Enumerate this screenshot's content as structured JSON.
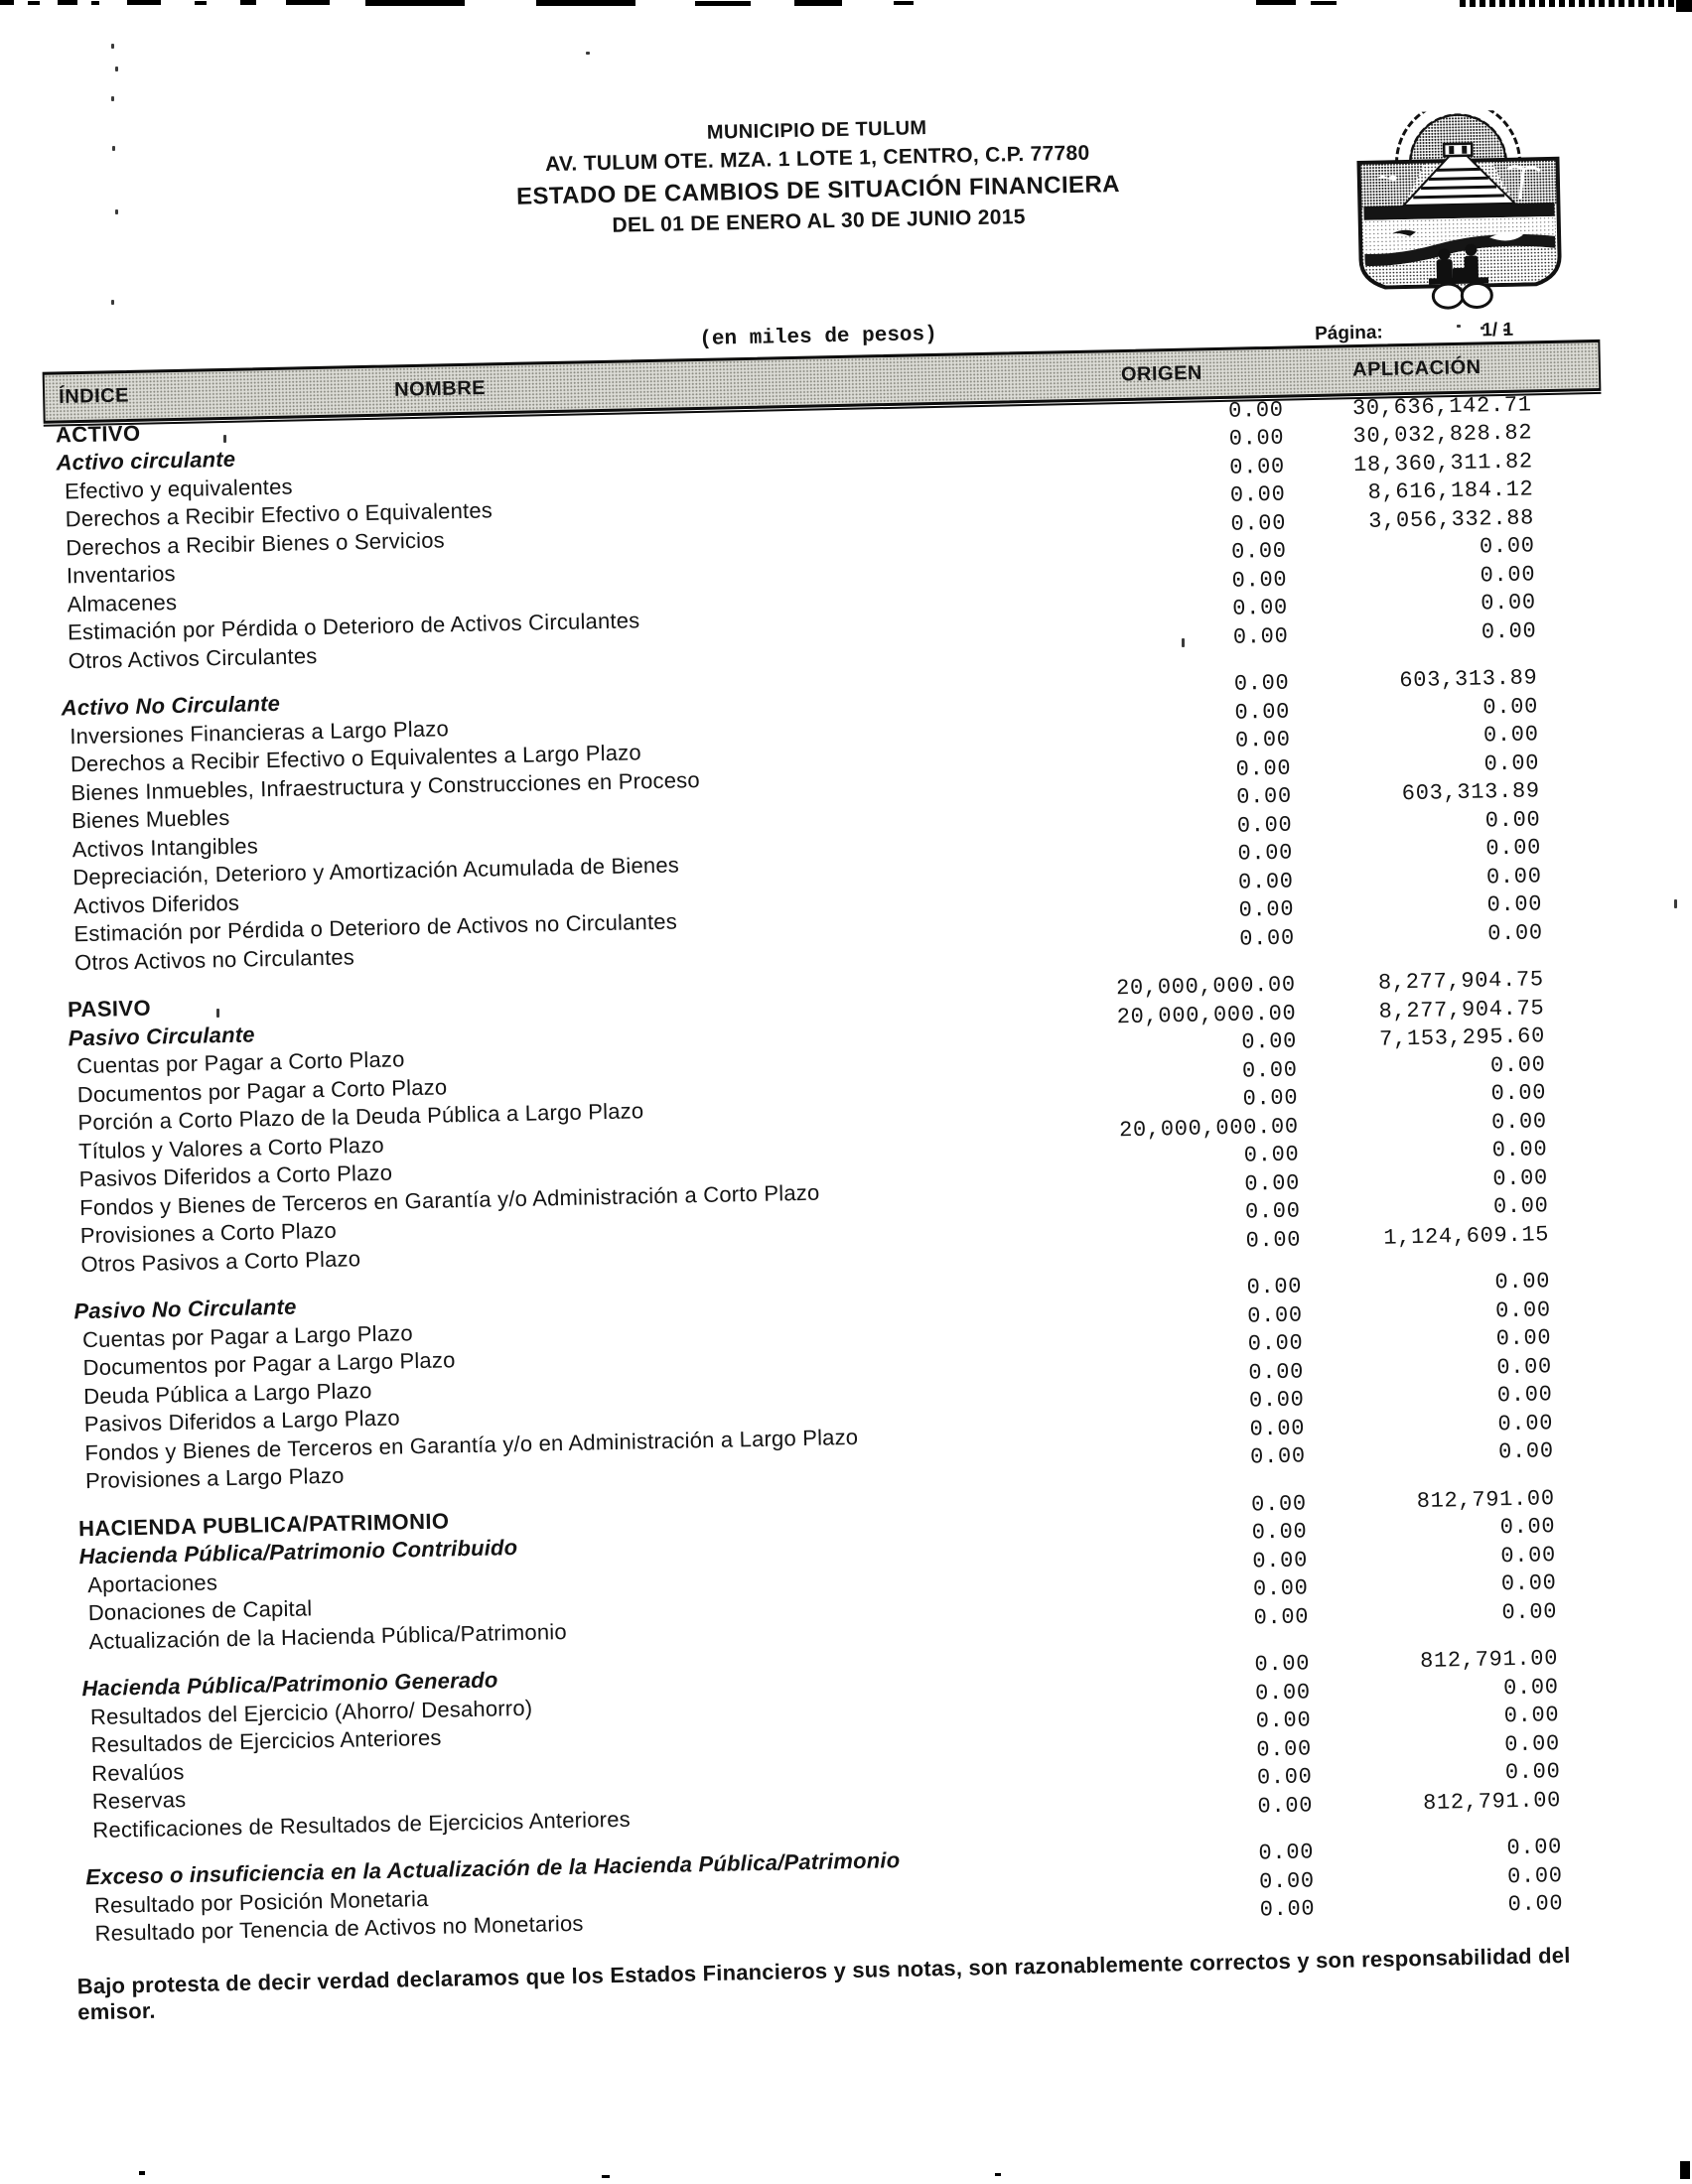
{
  "header": {
    "organization": "MUNICIPIO DE TULUM",
    "address": "AV. TULUM OTE. MZA. 1 LOTE 1, CENTRO, C.P. 77780",
    "title": "ESTADO DE CAMBIOS DE SITUACIÓN FINANCIERA",
    "period": "DEL 01 DE ENERO AL 30 DE JUNIO 2015",
    "unit_note": "(en miles de pesos)",
    "page_label": "Página:",
    "page_value": "1/ 1"
  },
  "logo": {
    "name": "tulum-municipal-shield",
    "description": "shield with dome, pyramid, sea and figures"
  },
  "table": {
    "columns": {
      "indice": "ÍNDICE",
      "nombre": "NOMBRE",
      "origen": "ORIGEN",
      "aplicacion": "APLICACIÓN"
    },
    "sections": [
      {
        "rows": [
          {
            "name": "ACTIVO",
            "style": "header",
            "origen": "0.00",
            "aplicacion": "30,636,142.71"
          },
          {
            "name": "Activo circulante",
            "style": "subheader",
            "origen": "0.00",
            "aplicacion": "30,032,828.82"
          },
          {
            "name": "Efectivo y equivalentes",
            "style": "item",
            "origen": "0.00",
            "aplicacion": "18,360,311.82"
          },
          {
            "name": "Derechos a Recibir Efectivo o Equivalentes",
            "style": "item",
            "origen": "0.00",
            "aplicacion": "8,616,184.12"
          },
          {
            "name": "Derechos a Recibir Bienes o Servicios",
            "style": "item",
            "origen": "0.00",
            "aplicacion": "3,056,332.88"
          },
          {
            "name": "Inventarios",
            "style": "item",
            "origen": "0.00",
            "aplicacion": "0.00"
          },
          {
            "name": "Almacenes",
            "style": "item",
            "origen": "0.00",
            "aplicacion": "0.00"
          },
          {
            "name": "Estimación por Pérdida o Deterioro de Activos Circulantes",
            "style": "item",
            "origen": "0.00",
            "aplicacion": "0.00"
          },
          {
            "name": "Otros Activos Circulantes",
            "style": "item",
            "origen": "0.00",
            "aplicacion": "0.00"
          }
        ]
      },
      {
        "rows": [
          {
            "name": "Activo No Circulante",
            "style": "subheader",
            "origen": "0.00",
            "aplicacion": "603,313.89"
          },
          {
            "name": "Inversiones Financieras a Largo Plazo",
            "style": "item",
            "origen": "0.00",
            "aplicacion": "0.00"
          },
          {
            "name": "Derechos a Recibir Efectivo o Equivalentes a Largo Plazo",
            "style": "item",
            "origen": "0.00",
            "aplicacion": "0.00"
          },
          {
            "name": "Bienes Inmuebles, Infraestructura y Construcciones en Proceso",
            "style": "item",
            "origen": "0.00",
            "aplicacion": "0.00"
          },
          {
            "name": "Bienes Muebles",
            "style": "item",
            "origen": "0.00",
            "aplicacion": "603,313.89"
          },
          {
            "name": "Activos Intangibles",
            "style": "item",
            "origen": "0.00",
            "aplicacion": "0.00"
          },
          {
            "name": "Depreciación, Deterioro y Amortización Acumulada de Bienes",
            "style": "item",
            "origen": "0.00",
            "aplicacion": "0.00"
          },
          {
            "name": "Activos Diferidos",
            "style": "item",
            "origen": "0.00",
            "aplicacion": "0.00"
          },
          {
            "name": "Estimación por Pérdida o Deterioro de Activos no Circulantes",
            "style": "item",
            "origen": "0.00",
            "aplicacion": "0.00"
          },
          {
            "name": "Otros Activos no Circulantes",
            "style": "item",
            "origen": "0.00",
            "aplicacion": "0.00"
          }
        ]
      },
      {
        "rows": [
          {
            "name": "PASIVO",
            "style": "header",
            "origen": "20,000,000.00",
            "aplicacion": "8,277,904.75"
          },
          {
            "name": "Pasivo Circulante",
            "style": "subheader",
            "origen": "20,000,000.00",
            "aplicacion": "8,277,904.75"
          },
          {
            "name": "Cuentas por Pagar a Corto Plazo",
            "style": "item",
            "origen": "0.00",
            "aplicacion": "7,153,295.60"
          },
          {
            "name": "Documentos por Pagar a Corto Plazo",
            "style": "item",
            "origen": "0.00",
            "aplicacion": "0.00"
          },
          {
            "name": "Porción a Corto Plazo de la Deuda Pública a Largo Plazo",
            "style": "item",
            "origen": "0.00",
            "aplicacion": "0.00"
          },
          {
            "name": "Títulos y Valores a Corto Plazo",
            "style": "item",
            "origen": "20,000,000.00",
            "aplicacion": "0.00"
          },
          {
            "name": "Pasivos Diferidos a Corto Plazo",
            "style": "item",
            "origen": "0.00",
            "aplicacion": "0.00"
          },
          {
            "name": "Fondos y Bienes de Terceros en Garantía y/o Administración a Corto Plazo",
            "style": "item",
            "origen": "0.00",
            "aplicacion": "0.00"
          },
          {
            "name": "Provisiones a Corto Plazo",
            "style": "item",
            "origen": "0.00",
            "aplicacion": "0.00"
          },
          {
            "name": "Otros Pasivos a Corto Plazo",
            "style": "item",
            "origen": "0.00",
            "aplicacion": "1,124,609.15"
          }
        ]
      },
      {
        "rows": [
          {
            "name": "Pasivo No Circulante",
            "style": "subheader",
            "origen": "0.00",
            "aplicacion": "0.00"
          },
          {
            "name": "Cuentas por Pagar a Largo Plazo",
            "style": "item",
            "origen": "0.00",
            "aplicacion": "0.00"
          },
          {
            "name": "Documentos por Pagar a Largo Plazo",
            "style": "item",
            "origen": "0.00",
            "aplicacion": "0.00"
          },
          {
            "name": "Deuda Pública a Largo Plazo",
            "style": "item",
            "origen": "0.00",
            "aplicacion": "0.00"
          },
          {
            "name": "Pasivos Diferidos a Largo Plazo",
            "style": "item",
            "origen": "0.00",
            "aplicacion": "0.00"
          },
          {
            "name": "Fondos y Bienes de Terceros en Garantía y/o en Administración a Largo Plazo",
            "style": "item",
            "origen": "0.00",
            "aplicacion": "0.00"
          },
          {
            "name": "Provisiones a Largo Plazo",
            "style": "item",
            "origen": "0.00",
            "aplicacion": "0.00"
          }
        ]
      },
      {
        "rows": [
          {
            "name": "HACIENDA PUBLICA/PATRIMONIO",
            "style": "header",
            "origen": "0.00",
            "aplicacion": "812,791.00"
          },
          {
            "name": "Hacienda Pública/Patrimonio Contribuido",
            "style": "subheader",
            "origen": "0.00",
            "aplicacion": "0.00"
          },
          {
            "name": "Aportaciones",
            "style": "item",
            "origen": "0.00",
            "aplicacion": "0.00"
          },
          {
            "name": "Donaciones de Capital",
            "style": "item",
            "origen": "0.00",
            "aplicacion": "0.00"
          },
          {
            "name": "Actualización de la Hacienda Pública/Patrimonio",
            "style": "item",
            "origen": "0.00",
            "aplicacion": "0.00"
          }
        ]
      },
      {
        "rows": [
          {
            "name": "Hacienda Pública/Patrimonio Generado",
            "style": "subheader",
            "origen": "0.00",
            "aplicacion": "812,791.00"
          },
          {
            "name": "Resultados del Ejercicio (Ahorro/ Desahorro)",
            "style": "item",
            "origen": "0.00",
            "aplicacion": "0.00"
          },
          {
            "name": "Resultados de Ejercicios Anteriores",
            "style": "item",
            "origen": "0.00",
            "aplicacion": "0.00"
          },
          {
            "name": "Revalúos",
            "style": "item",
            "origen": "0.00",
            "aplicacion": "0.00"
          },
          {
            "name": "Reservas",
            "style": "item",
            "origen": "0.00",
            "aplicacion": "0.00"
          },
          {
            "name": "Rectificaciones de Resultados de Ejercicios Anteriores",
            "style": "item",
            "origen": "0.00",
            "aplicacion": "812,791.00"
          }
        ]
      },
      {
        "rows": [
          {
            "name": "Exceso o insuficiencia en la Actualización de la Hacienda Pública/Patrimonio",
            "style": "subheader",
            "origen": "0.00",
            "aplicacion": "0.00"
          },
          {
            "name": "Resultado por Posición Monetaria",
            "style": "item",
            "origen": "0.00",
            "aplicacion": "0.00"
          },
          {
            "name": "Resultado por Tenencia de Activos no Monetarios",
            "style": "item",
            "origen": "0.00",
            "aplicacion": "0.00"
          }
        ]
      }
    ]
  },
  "footer": {
    "declaration": "Bajo protesta de decir verdad declaramos que los Estados Financieros y sus notas, son razonablemente correctos y son responsabilidad del emisor."
  }
}
